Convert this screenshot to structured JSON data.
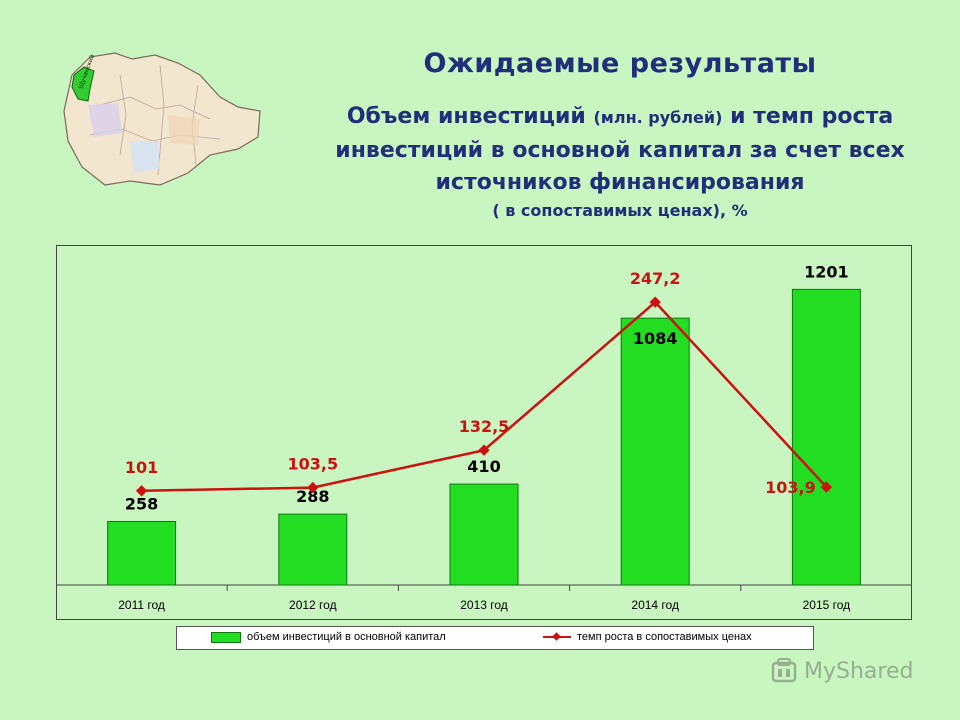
{
  "header": {
    "title": "Ожидаемые результаты",
    "sub1_a": "Объем инвестиций ",
    "sub1_small": "(млн. рублей)",
    "sub1_b": " и темп роста",
    "sub2": "инвестиций в основной капитал за счет всех",
    "sub3": "источников финансирования",
    "sub4": "( в сопоставимых ценах), %"
  },
  "watermark": {
    "text": "MyShared"
  },
  "map_label": "Щучанский",
  "colors": {
    "bar": "#22dd22",
    "line": "#cc1111",
    "bar_label": "#000000",
    "line_label": "#cc1111"
  },
  "chart_data": {
    "type": "bar",
    "categories": [
      "2011 год",
      "2012 год",
      "2013 год",
      "2014 год",
      "2015 год"
    ],
    "series": [
      {
        "name": "объем инвестиций в основной капитал",
        "type": "bar",
        "values": [
          258,
          288,
          410,
          1084,
          1201
        ],
        "labels": [
          "258",
          "288",
          "410",
          "1084",
          "1201"
        ]
      },
      {
        "name": "темп роста в сопоставимых ценах",
        "type": "line",
        "values": [
          101,
          103.5,
          132.5,
          247.2,
          103.9
        ],
        "labels": [
          "101",
          "103,5",
          "132,5",
          "247,2",
          "103,9"
        ]
      }
    ],
    "bar_ylim": [
      0,
      1300
    ],
    "line_ylim": [
      28,
      276
    ],
    "legend_position": "bottom",
    "grid": false
  }
}
